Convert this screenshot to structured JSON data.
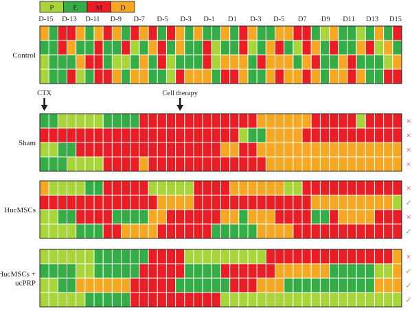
{
  "colors": {
    "P": "#a8d53a",
    "E": "#34ad47",
    "M": "#ea1d25",
    "D": "#f7a823",
    "grid": "#ffffff",
    "border": "#231f20",
    "text": "#231f20",
    "cross": "#e8231f",
    "check": "#5bb543"
  },
  "legend": [
    {
      "key": "P",
      "label": "P"
    },
    {
      "key": "E",
      "label": "E"
    },
    {
      "key": "M",
      "label": "M"
    },
    {
      "key": "D",
      "label": "D"
    }
  ],
  "chart_data": {
    "type": "heatmap",
    "day_labels": [
      "D-15",
      "D-13",
      "D-11",
      "D-9",
      "D-7",
      "D-5",
      "D-3",
      "D-1",
      "D1",
      "D-3",
      "D-5",
      "D7",
      "D9",
      "D11",
      "D13",
      "D15"
    ],
    "annotations": [
      {
        "id": "ctx",
        "label": "CTX",
        "column": 0
      },
      {
        "id": "cell-therapy",
        "label": "Cell therapy",
        "column": 15
      }
    ],
    "groups": [
      {
        "name": "Control",
        "rows": [
          {
            "cells": "DEMMDEDMDEMDMEMDEDEEDEMDEEDDMMEPDEEPEDEM",
            "mark": ""
          },
          {
            "cells": "EEMDEEMEEMPEDMEDEEMPEEMPEDMEPMDEMEEDMPDE",
            "mark": ""
          },
          {
            "cells": "PEEEDMMEPPEDEMPEEEMPDDDEMDDDEDMEEDMEEEPD",
            "mark": ""
          },
          {
            "cells": "PEEMPEMMDEDDEEPMDDDEMMDEEDMDDMDEDDMDEEMM",
            "mark": ""
          }
        ]
      },
      {
        "name": "Sham",
        "rows": [
          {
            "cells": "EEPPPPPEEEEMMMMMMMMMMMMMDDDDDDMMMMMPMMMM",
            "mark": "cross"
          },
          {
            "cells": "MMMMMMMMMMMMMMMMMMMMMMPEEDDDDMMMMMMMMMMM",
            "mark": "cross"
          },
          {
            "cells": "PPEEMMMMMMMMMMMMMMMMDDMMDDDDDDDDDDDDDDDD",
            "mark": "cross"
          },
          {
            "cells": "EEEPPPPMMMMDMMMMMMMMMMMMMDDDDDDDDDDDDDDD",
            "mark": "cross"
          }
        ]
      },
      {
        "name": "HucMSCs",
        "rows": [
          {
            "cells": "DPPPPEEMMMMMPPPPPMMMMDDDDDDPPMMMMMMMMMMM",
            "mark": "cross"
          },
          {
            "cells": "MMMMMMMMMMMMMDDDDMMMMMMMMMMMMMDDDDDDDDDP",
            "mark": "check"
          },
          {
            "cells": "PPEEMMMMEEEEDDMMMMMMDDEDDDMMMMEEMDDDDMMM",
            "mark": "cross"
          },
          {
            "cells": "PPPPEEEMMDDDDMMMMMMEEEEEDDDDMMMMMMMMMMMM",
            "mark": "check"
          }
        ]
      },
      {
        "name": "HucMSCs +\nucPRP",
        "rows": [
          {
            "cells": "PPPPPPEEEEEEMMMMPPPPPPPPPMMMMMMMMMMMMMMD",
            "mark": "cross"
          },
          {
            "cells": "EEEEPPEEEEEMMMMMEEEEMMMMMMDDDDDDEEEEEPPD",
            "mark": "check"
          },
          {
            "cells": "PPEEDDDDDDMMMMMEEEEEEMMMDDDEEEEEEEEEEDDD",
            "mark": "check"
          },
          {
            "cells": "PPPPPEEEEEMMMMMMMMMMPPPPPPPPPPPPPPPPPPPP",
            "mark": "check"
          }
        ]
      }
    ],
    "marks": {
      "cross": "×",
      "check": "✓"
    }
  }
}
